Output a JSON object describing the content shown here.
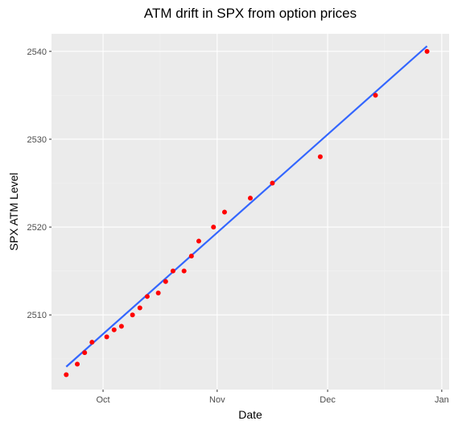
{
  "chart_data": {
    "type": "scatter",
    "title": "ATM drift in SPX from option prices",
    "xlabel": "Date",
    "ylabel": "SPX ATM Level",
    "x_axis_type": "date",
    "xlim": [
      "2018-09-17",
      "2019-01-03"
    ],
    "ylim": [
      2501.5,
      2542.0
    ],
    "x_ticks": [
      {
        "date": "2018-10-01",
        "label": "Oct"
      },
      {
        "date": "2018-11-01",
        "label": "Nov"
      },
      {
        "date": "2018-12-01",
        "label": "Dec"
      },
      {
        "date": "2019-01-01",
        "label": "Jan"
      }
    ],
    "y_ticks": [
      2510,
      2520,
      2530,
      2540
    ],
    "grid": true,
    "legend": "none",
    "colors": {
      "panel_background": "#ebebeb",
      "grid_major": "#ffffff",
      "grid_minor": "#f2f2f2",
      "points": "#ff0000",
      "fit_line": "#3366ff"
    },
    "series": [
      {
        "kind": "points",
        "points": [
          {
            "x": "2018-09-21",
            "y": 2503.2
          },
          {
            "x": "2018-09-24",
            "y": 2504.4
          },
          {
            "x": "2018-09-26",
            "y": 2505.7
          },
          {
            "x": "2018-09-28",
            "y": 2506.9
          },
          {
            "x": "2018-10-02",
            "y": 2507.5
          },
          {
            "x": "2018-10-04",
            "y": 2508.3
          },
          {
            "x": "2018-10-06",
            "y": 2508.7
          },
          {
            "x": "2018-10-09",
            "y": 2510.0
          },
          {
            "x": "2018-10-11",
            "y": 2510.8
          },
          {
            "x": "2018-10-13",
            "y": 2512.1
          },
          {
            "x": "2018-10-16",
            "y": 2512.5
          },
          {
            "x": "2018-10-18",
            "y": 2513.8
          },
          {
            "x": "2018-10-20",
            "y": 2515.0
          },
          {
            "x": "2018-10-23",
            "y": 2515.0
          },
          {
            "x": "2018-10-25",
            "y": 2516.7
          },
          {
            "x": "2018-10-27",
            "y": 2518.4
          },
          {
            "x": "2018-10-31",
            "y": 2520.0
          },
          {
            "x": "2018-11-03",
            "y": 2521.7
          },
          {
            "x": "2018-11-10",
            "y": 2523.3
          },
          {
            "x": "2018-11-16",
            "y": 2525.0
          },
          {
            "x": "2018-11-29",
            "y": 2528.0
          },
          {
            "x": "2018-12-14",
            "y": 2535.0
          },
          {
            "x": "2018-12-28",
            "y": 2540.0
          }
        ]
      },
      {
        "kind": "linear_fit",
        "start": {
          "x": "2018-09-21",
          "y": 2504.1
        },
        "end": {
          "x": "2018-12-28",
          "y": 2540.6
        }
      }
    ]
  }
}
